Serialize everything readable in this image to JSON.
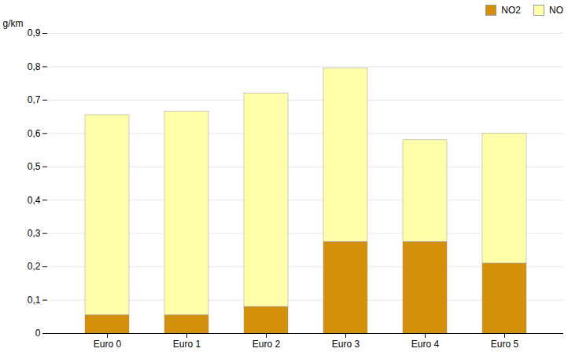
{
  "chart_data": {
    "type": "bar",
    "stacked": true,
    "categories": [
      "Euro 0",
      "Euro 1",
      "Euro 2",
      "Euro 3",
      "Euro 4",
      "Euro 5"
    ],
    "series": [
      {
        "name": "NO2",
        "color": "#D4900A",
        "values": [
          0.055,
          0.055,
          0.08,
          0.275,
          0.275,
          0.21
        ]
      },
      {
        "name": "NO",
        "color": "#FFFFAA",
        "values": [
          0.6,
          0.61,
          0.64,
          0.52,
          0.305,
          0.39
        ]
      }
    ],
    "ylabel": "g/km",
    "ylim": [
      0,
      0.9
    ],
    "yticks": [
      0,
      {
        "value": 0.1,
        "label": "0,1"
      },
      {
        "value": 0.2,
        "label": "0,2"
      },
      {
        "value": 0.3,
        "label": "0,3"
      },
      {
        "value": 0.4,
        "label": "0,4"
      },
      {
        "value": 0.5,
        "label": "0,5"
      },
      {
        "value": 0.6,
        "label": "0,6"
      },
      {
        "value": 0.7,
        "label": "0,7"
      },
      {
        "value": 0.8,
        "label": "0,8"
      },
      {
        "value": 0.9,
        "label": "0,9"
      }
    ],
    "grid": true,
    "legend": "upper right"
  }
}
